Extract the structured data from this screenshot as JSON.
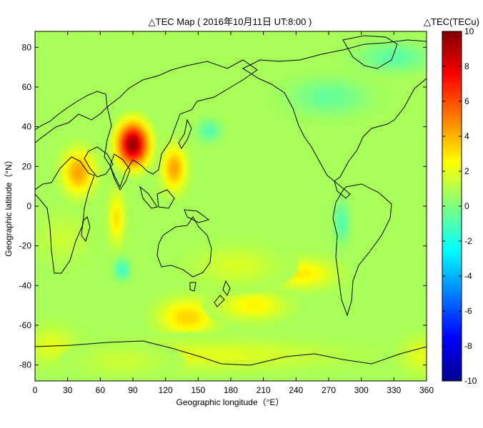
{
  "chart_data": {
    "type": "heatmap",
    "title": "△TEC Map ( 2016年10月11日 UT:8:00 )",
    "xlabel": "Geographic longitude（°E）",
    "ylabel": "Geographic latitude（°N）",
    "xlim": [
      0,
      360
    ],
    "ylim": [
      -88,
      88
    ],
    "x_ticks": [
      0,
      30,
      60,
      90,
      120,
      150,
      180,
      210,
      240,
      270,
      300,
      330,
      360
    ],
    "y_ticks": [
      -80,
      -60,
      -40,
      -20,
      0,
      20,
      40,
      60,
      80
    ],
    "x_tick_labels": [
      "0",
      "30",
      "60",
      "90",
      "120",
      "150",
      "180",
      "210",
      "240",
      "270",
      "300",
      "330",
      "360"
    ],
    "y_tick_labels": [
      "-80",
      "-60",
      "-40",
      "-20",
      "0",
      "20",
      "40",
      "60",
      "80"
    ],
    "colorbar": {
      "label": "△TEC(TECu)",
      "range": [
        -10,
        10
      ],
      "ticks": [
        10,
        8,
        6,
        4,
        2,
        0,
        -2,
        -4,
        -6,
        -8,
        -10
      ],
      "tick_labels": [
        "10",
        "8",
        "6",
        "4",
        "2",
        "0",
        "-2",
        "-4",
        "-6",
        "-8",
        "-10"
      ],
      "colormap": "jet"
    },
    "background_value": 0.8,
    "anomalies": [
      {
        "lon": 90,
        "lat": 31,
        "peak": 10,
        "sigma_lon": 8,
        "sigma_lat": 6
      },
      {
        "lon": 40,
        "lat": 17,
        "peak": 4.5,
        "sigma_lon": 8,
        "sigma_lat": 6
      },
      {
        "lon": 128,
        "lat": 19,
        "peak": 4.5,
        "sigma_lon": 6,
        "sigma_lat": 6
      },
      {
        "lon": 75,
        "lat": -6,
        "peak": 3.2,
        "sigma_lon": 4,
        "sigma_lat": 7
      },
      {
        "lon": 140,
        "lat": -56,
        "peak": 3.5,
        "sigma_lon": 14,
        "sigma_lat": 5
      },
      {
        "lon": 200,
        "lat": -50,
        "peak": 2.8,
        "sigma_lon": 16,
        "sigma_lat": 4
      },
      {
        "lon": 245,
        "lat": -34,
        "peak": 3.0,
        "sigma_lon": 16,
        "sigma_lat": 4
      },
      {
        "lon": 185,
        "lat": -30,
        "peak": 1.8,
        "sigma_lon": 20,
        "sigma_lat": 5
      },
      {
        "lon": 160,
        "lat": -75,
        "peak": 2.0,
        "sigma_lon": 60,
        "sigma_lat": 4
      },
      {
        "lon": 15,
        "lat": -70,
        "peak": 2.0,
        "sigma_lon": 12,
        "sigma_lat": 5
      },
      {
        "lon": 355,
        "lat": -75,
        "peak": 2.0,
        "sigma_lon": 10,
        "sigma_lat": 5
      },
      {
        "lon": 25,
        "lat": -16,
        "peak": 1.5,
        "sigma_lon": 12,
        "sigma_lat": 6
      },
      {
        "lon": 80,
        "lat": -78,
        "peak": 1.5,
        "sigma_lon": 20,
        "sigma_lat": 4
      },
      {
        "lon": 80,
        "lat": -32,
        "peak": -1.5,
        "sigma_lon": 4,
        "sigma_lat": 3
      },
      {
        "lon": 160,
        "lat": 38,
        "peak": -1.0,
        "sigma_lon": 6,
        "sigma_lat": 3
      },
      {
        "lon": 282,
        "lat": -8,
        "peak": -1.0,
        "sigma_lon": 4,
        "sigma_lat": 6
      },
      {
        "lon": 330,
        "lat": 75,
        "peak": -0.8,
        "sigma_lon": 18,
        "sigma_lat": 4
      },
      {
        "lon": 270,
        "lat": 55,
        "peak": -0.6,
        "sigma_lon": 20,
        "sigma_lat": 5
      }
    ]
  }
}
